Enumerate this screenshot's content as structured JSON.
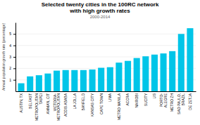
{
  "chart_data": {
    "type": "bar",
    "title": "Selected twenty cities in the 100RC network\nwith high growth rates",
    "subtitle": "2000-2014",
    "ylabel": "Annual population growth rate (percentage)",
    "categories": [
      "AUSTIN, TX",
      "BELFAST",
      "METROPOLITAN\nTAIPEI",
      "AMMAN, CIT",
      "VICTORIA-\nMETROPOLITAN",
      "ADDIS ABABA",
      "LA JOLLA",
      "BANFIELD",
      "KANSAS CITY",
      "CAPE TOWN",
      "LIMA",
      "METRO MANILA",
      "ACCRA",
      "NAIROBI",
      "SUCITY",
      "LIS",
      "PORTO-\nALEGRE",
      "METRO ZH",
      "SAO PAULO,\nBRAZIL",
      "DE ZETJA"
    ],
    "values": [
      0.7,
      1.3,
      1.4,
      1.55,
      1.8,
      1.85,
      1.85,
      1.85,
      1.9,
      2.05,
      2.1,
      2.5,
      2.65,
      2.9,
      3.05,
      3.2,
      3.3,
      3.5,
      5.0,
      5.5
    ],
    "color": "#00c5e8",
    "ylim": [
      0,
      6
    ],
    "yticks": [
      1,
      2,
      3,
      4,
      5
    ],
    "grid": true
  }
}
